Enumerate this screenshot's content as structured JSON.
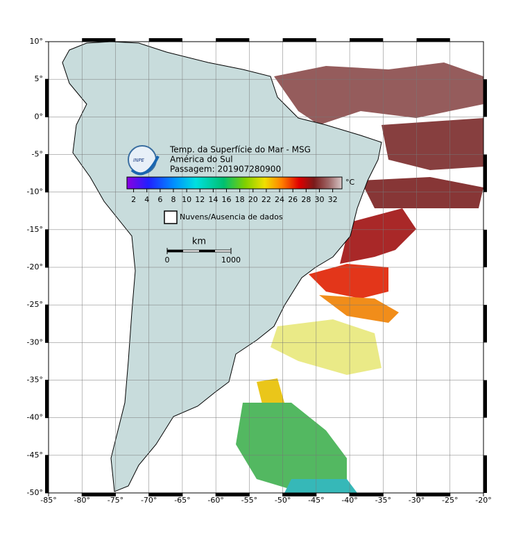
{
  "map": {
    "title_lines": [
      "Temp. da Superfície do Mar - MSG",
      "América do Sul",
      "Passagem: 201907280900"
    ],
    "logo_text": "INPE",
    "xlim": [
      -85,
      -20
    ],
    "ylim": [
      -50,
      10
    ],
    "xticks": [
      {
        "value": -85,
        "label": "-85°"
      },
      {
        "value": -80,
        "label": "-80°"
      },
      {
        "value": -75,
        "label": "-75°"
      },
      {
        "value": -70,
        "label": "-70°"
      },
      {
        "value": -65,
        "label": "-65°"
      },
      {
        "value": -60,
        "label": "-60°"
      },
      {
        "value": -55,
        "label": "-55°"
      },
      {
        "value": -50,
        "label": "-50°"
      },
      {
        "value": -45,
        "label": "-45°"
      },
      {
        "value": -40,
        "label": "-40°"
      },
      {
        "value": -35,
        "label": "-35°"
      },
      {
        "value": -30,
        "label": "-30°"
      },
      {
        "value": -25,
        "label": "-25°"
      },
      {
        "value": -20,
        "label": "-20°"
      }
    ],
    "yticks": [
      {
        "value": 10,
        "label": "10°"
      },
      {
        "value": 5,
        "label": "5°"
      },
      {
        "value": 0,
        "label": "0°"
      },
      {
        "value": -5,
        "label": "-5°"
      },
      {
        "value": -10,
        "label": "-10°"
      },
      {
        "value": -15,
        "label": "-15°"
      },
      {
        "value": -20,
        "label": "-20°"
      },
      {
        "value": -25,
        "label": "-25°"
      },
      {
        "value": -30,
        "label": "-30°"
      },
      {
        "value": -35,
        "label": "-35°"
      },
      {
        "value": -40,
        "label": "-40°"
      },
      {
        "value": -45,
        "label": "-45°"
      },
      {
        "value": -50,
        "label": "-50°"
      }
    ],
    "grid": true,
    "colorbar": {
      "unit": "°C",
      "lim": [
        1,
        33.4
      ],
      "ticks": [
        2,
        4,
        6,
        8,
        10,
        12,
        14,
        16,
        18,
        20,
        22,
        24,
        26,
        28,
        30,
        32
      ]
    },
    "legend": "Nuvens/Ausencia de dados",
    "scale_bar": {
      "label": "km",
      "ticks": [
        0,
        1000
      ]
    }
  }
}
